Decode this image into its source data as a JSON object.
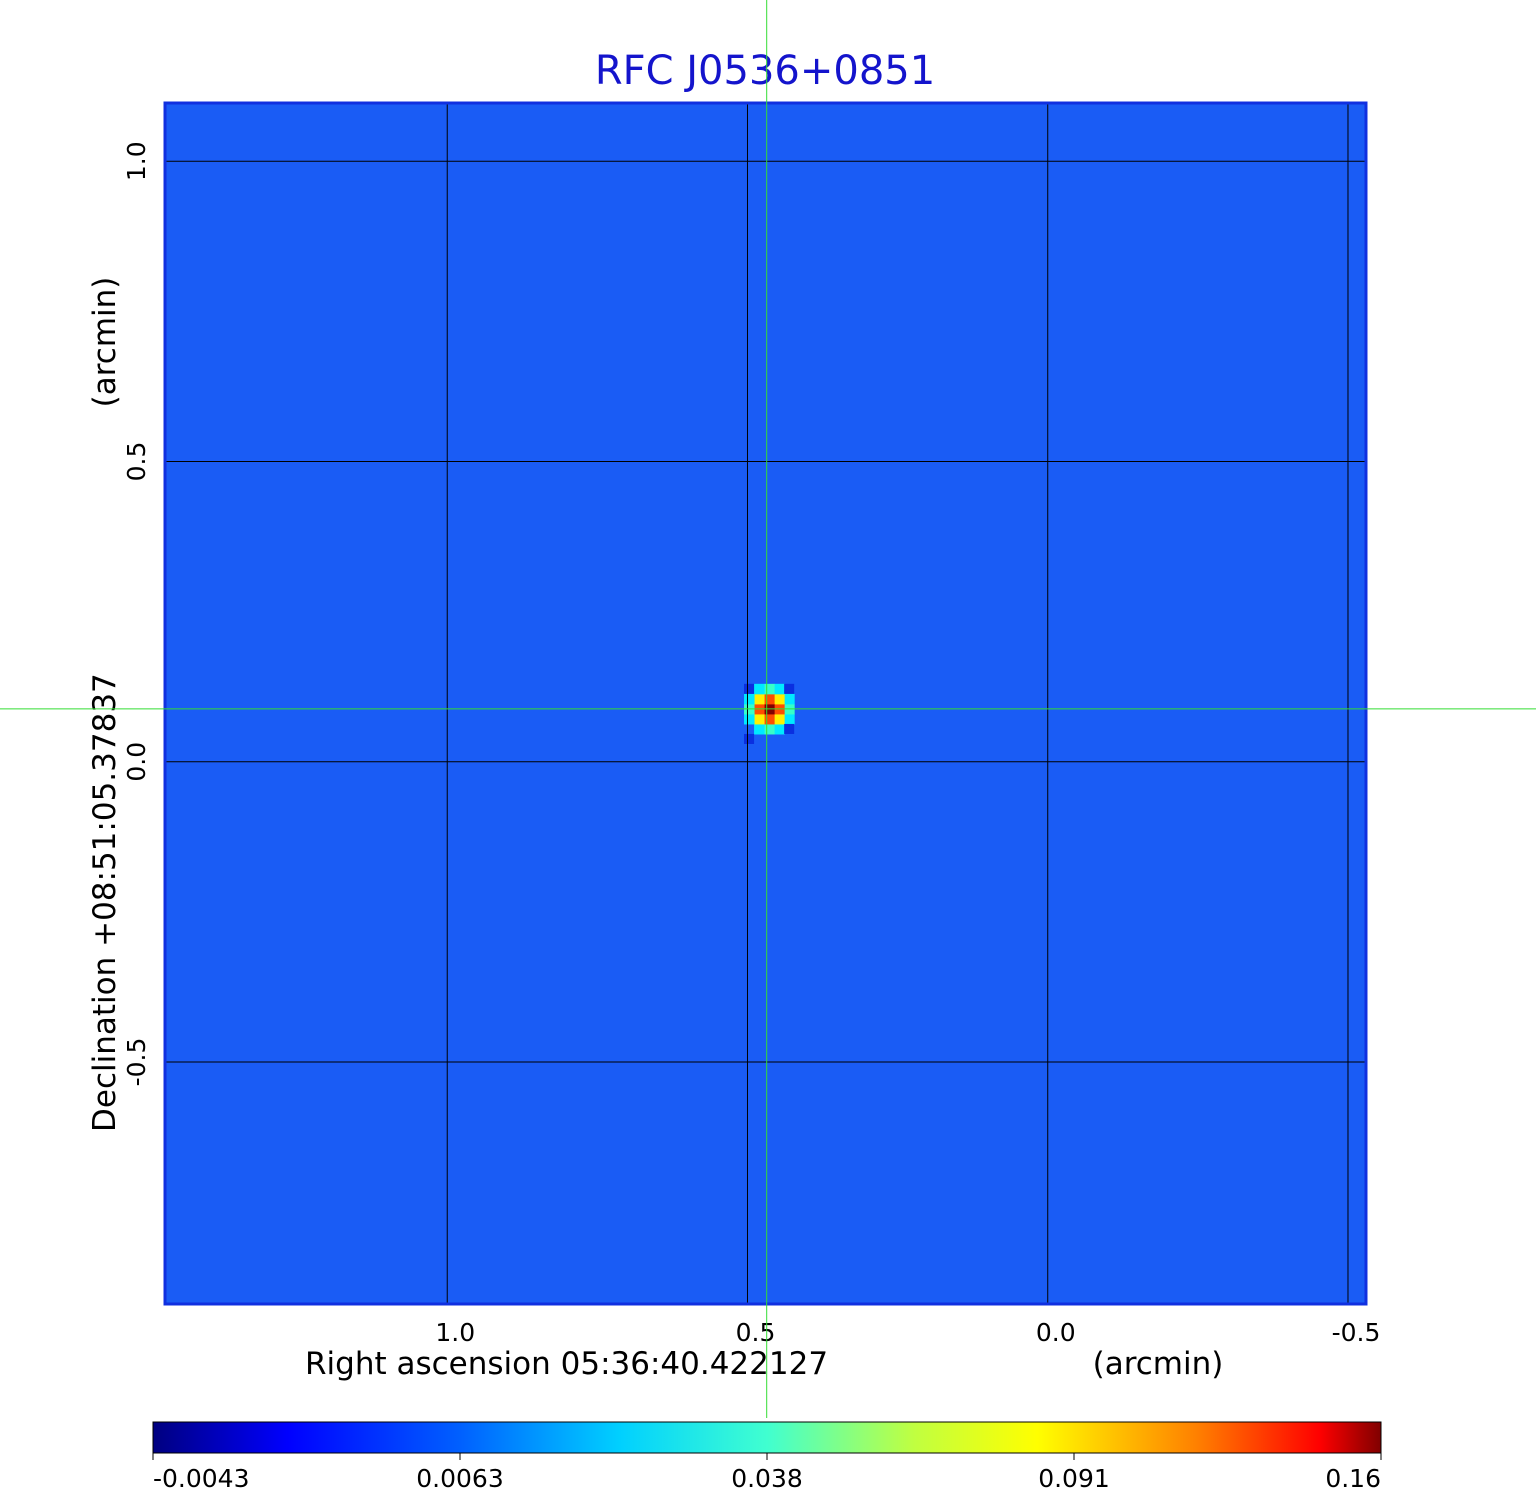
{
  "chart_data": {
    "type": "heatmap",
    "title": "RFC J0536+0851",
    "xlabel": "Right ascension  05:36:40.422127",
    "xunit": "(arcmin)",
    "ylabel": "Declination  +08:51:05.37837",
    "yunit": "(arcmin)",
    "xlim": [
      1.47,
      -0.53
    ],
    "ylim": [
      -0.903,
      1.097
    ],
    "x_ticks": [
      {
        "value": 1.0,
        "label": "1.0"
      },
      {
        "value": 0.5,
        "label": "0.5"
      },
      {
        "value": 0.0,
        "label": "0.0"
      },
      {
        "value": -0.5,
        "label": "-0.5"
      }
    ],
    "y_ticks": [
      {
        "value": 1.0,
        "label": "1.0"
      },
      {
        "value": 0.5,
        "label": "0.5"
      },
      {
        "value": 0.0,
        "label": "0.0"
      },
      {
        "value": -0.5,
        "label": "-0.5"
      }
    ],
    "grid": true,
    "colormap": "jet",
    "colorbar": {
      "range": [
        -0.0043,
        0.16
      ],
      "ticks": [
        {
          "value": -0.0043,
          "label": "-0.0043"
        },
        {
          "value": 0.0063,
          "label": "0.0063"
        },
        {
          "value": 0.038,
          "label": "0.038"
        },
        {
          "value": 0.091,
          "label": "0.091"
        },
        {
          "value": 0.16,
          "label": "0.16"
        }
      ]
    },
    "peak": {
      "x": 0.464,
      "y": 0.088,
      "value": 0.16
    },
    "background_level": 0.003,
    "crosshair": {
      "x": 0.468,
      "y": 0.088,
      "color": "#33dd33"
    }
  }
}
